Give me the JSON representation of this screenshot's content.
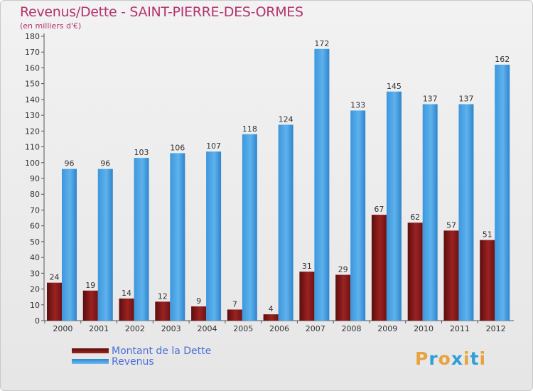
{
  "title": "Revenus/Dette - SAINT-PIERRE-DES-ORMES",
  "subtitle": "(en milliers d'€)",
  "logo": {
    "letters": [
      "P",
      "r",
      "o",
      "x",
      "i",
      "t",
      "i"
    ],
    "colors": [
      "#e8a33d",
      "#2f9fd8",
      "#e8a33d",
      "#2f9fd8",
      "#e8a33d",
      "#2f9fd8",
      "#e8a33d"
    ]
  },
  "chart_data": {
    "type": "bar",
    "categories": [
      "2000",
      "2001",
      "2002",
      "2003",
      "2004",
      "2005",
      "2006",
      "2007",
      "2008",
      "2009",
      "2010",
      "2011",
      "2012"
    ],
    "series": [
      {
        "name": "Montant de la Dette",
        "values": [
          24,
          19,
          14,
          12,
          9,
          7,
          4,
          31,
          29,
          67,
          62,
          57,
          51
        ],
        "color": "#8b1a1a"
      },
      {
        "name": "Revenus",
        "values": [
          96,
          96,
          103,
          106,
          107,
          118,
          124,
          172,
          133,
          145,
          137,
          137,
          162
        ],
        "color": "#3f9ee2"
      }
    ],
    "ylim": [
      0,
      180
    ],
    "yticks": [
      0,
      10,
      20,
      30,
      40,
      50,
      60,
      70,
      80,
      90,
      100,
      110,
      120,
      130,
      140,
      150,
      160,
      170,
      180
    ],
    "grid": false,
    "legend_position": "bottom-left"
  }
}
